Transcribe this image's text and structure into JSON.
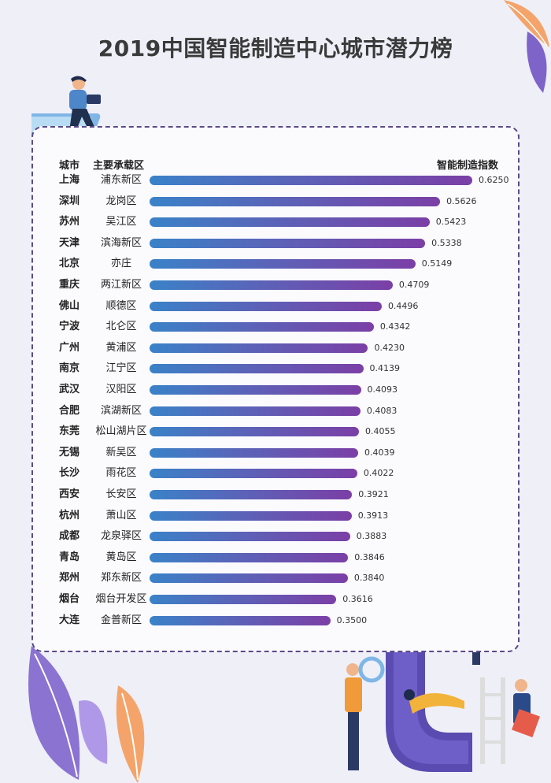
{
  "title": "2019中国智能制造中心城市潜力榜",
  "headers": {
    "city": "城市",
    "zone": "主要承载区",
    "index": "智能制造指数"
  },
  "chart_data": {
    "type": "bar",
    "orientation": "horizontal",
    "title": "2019中国智能制造中心城市潜力榜",
    "xlabel": "智能制造指数",
    "ylabel": "城市",
    "xlim": [
      0,
      0.625
    ],
    "grid": false,
    "categories": [
      "上海",
      "深圳",
      "苏州",
      "天津",
      "北京",
      "重庆",
      "佛山",
      "宁波",
      "广州",
      "南京",
      "武汉",
      "合肥",
      "东莞",
      "无锡",
      "长沙",
      "西安",
      "杭州",
      "成都",
      "青岛",
      "郑州",
      "烟台",
      "大连"
    ],
    "zones": [
      "浦东新区",
      "龙岗区",
      "吴江区",
      "滨海新区",
      "亦庄",
      "两江新区",
      "顺德区",
      "北仑区",
      "黄浦区",
      "江宁区",
      "汉阳区",
      "滨湖新区",
      "松山湖片区",
      "新吴区",
      "雨花区",
      "长安区",
      "萧山区",
      "龙泉驿区",
      "黄岛区",
      "郑东新区",
      "烟台开发区",
      "金普新区"
    ],
    "values": [
      0.625,
      0.5626,
      0.5423,
      0.5338,
      0.5149,
      0.4709,
      0.4496,
      0.4342,
      0.423,
      0.4139,
      0.4093,
      0.4083,
      0.4055,
      0.4039,
      0.4022,
      0.3921,
      0.3913,
      0.3883,
      0.3846,
      0.384,
      0.3616,
      0.35
    ],
    "labels": [
      "0.6250",
      "0.5626",
      "0.5423",
      "0.5338",
      "0.5149",
      "0.4709",
      "0.4496",
      "0.4342",
      "0.4230",
      "0.4139",
      "0.4093",
      "0.4083",
      "0.4055",
      "0.4039",
      "0.4022",
      "0.3921",
      "0.3913",
      "0.3883",
      "0.3846",
      "0.3840",
      "0.3616",
      "0.3500"
    ],
    "colors": {
      "bar_start": "#3a82c8",
      "bar_end": "#7b3fa6"
    }
  }
}
